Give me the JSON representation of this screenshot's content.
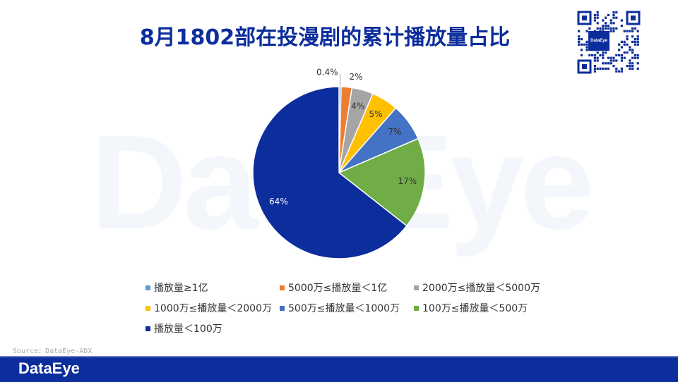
{
  "watermark_text": "DataEye",
  "qr_badge_text": "DataEye",
  "source_text": "Source：DataEye-ADX",
  "footer_logo_text": "DataEye",
  "chart_data": {
    "type": "pie",
    "title": "8月1802部在投漫剧的累计播放量占比",
    "slices": [
      {
        "label": "播放量≥1亿",
        "value": 0.4,
        "display": "0.4%",
        "color": "#5b9bd5"
      },
      {
        "label": "5000万≤播放量＜1亿",
        "value": 2,
        "display": "2%",
        "color": "#ed7d31"
      },
      {
        "label": "2000万≤播放量＜5000万",
        "value": 4,
        "display": "4%",
        "color": "#a5a5a5"
      },
      {
        "label": "1000万≤播放量＜2000万",
        "value": 5,
        "display": "5%",
        "color": "#ffc000"
      },
      {
        "label": "500万≤播放量＜1000万",
        "value": 7,
        "display": "7%",
        "color": "#4472c4"
      },
      {
        "label": "100万≤播放量＜500万",
        "value": 17,
        "display": "17%",
        "color": "#70ad47"
      },
      {
        "label": "播放量＜100万",
        "value": 64,
        "display": "64%",
        "color": "#0c2d9c"
      }
    ],
    "legend_position": "bottom"
  }
}
